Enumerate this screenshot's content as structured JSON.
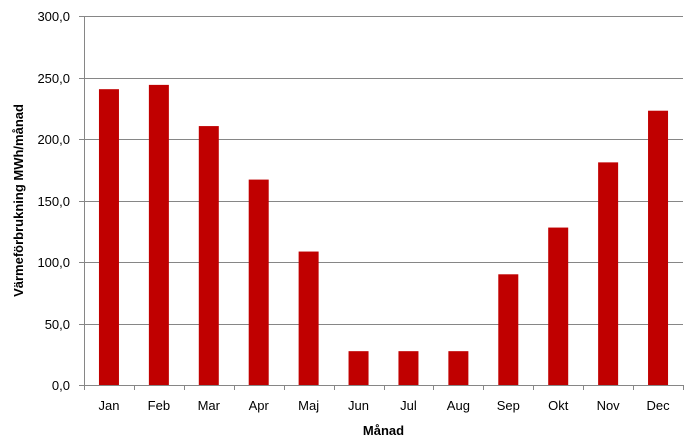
{
  "chart_data": {
    "type": "bar",
    "title": "",
    "xlabel": "Månad",
    "ylabel": "Värmeförbrukning MWh/månad",
    "categories": [
      "Jan",
      "Feb",
      "Mar",
      "Apr",
      "Maj",
      "Jun",
      "Jul",
      "Aug",
      "Sep",
      "Okt",
      "Nov",
      "Dec"
    ],
    "values": [
      240.5,
      244.0,
      210.5,
      167.0,
      108.5,
      27.5,
      27.5,
      27.5,
      90.0,
      128.0,
      181.0,
      223.0
    ],
    "ylim": [
      0,
      300
    ],
    "yticks": [
      "0,0",
      "50,0",
      "100,0",
      "150,0",
      "200,0",
      "250,0",
      "300,0"
    ],
    "grid": true,
    "legend": "none",
    "colors": {
      "bar": "#C00000",
      "grid": "#868686",
      "axis": "#868686"
    }
  }
}
